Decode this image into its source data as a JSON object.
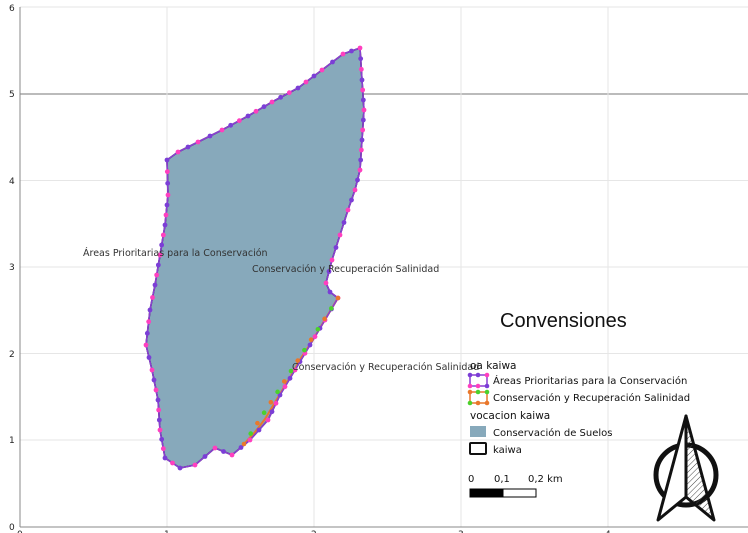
{
  "map": {
    "x_ticks": [
      "0",
      "1",
      "2",
      "3",
      "4"
    ],
    "y_ticks": [
      "0",
      "1",
      "2",
      "3",
      "4",
      "5",
      "6"
    ],
    "polygon_labels": {
      "areas_prioritarias": "Áreas Prioritarias para la Conservación",
      "conservacion_salinidad_1": "Conservación y Recuperación Salinidad",
      "conservacion_salinidad_2": "Conservación y Recuperación Salinidad"
    }
  },
  "legend": {
    "title": "Convensiones",
    "group1_title": "oa kaiwa",
    "item_areas": "Áreas Prioritarias para la Conservación",
    "item_salinidad": "Conservación y Recuperación Salinidad",
    "group2_title": "vocacion kaiwa",
    "item_suelos": "Conservación de Suelos",
    "item_kaiwa": "kaiwa"
  },
  "scale_bar": {
    "label_0": "0",
    "label_1": "0,1",
    "label_2": "0,2 km"
  },
  "colors": {
    "fill": "#87a9bb",
    "outline": "#111111",
    "purple_line": "#8a3fd1",
    "purple_dot": "#7b3ed6",
    "pink_dot": "#ff3fbf",
    "orange_line": "#e9782c",
    "green_dot": "#4bd12c",
    "grid": "#e6e6e6",
    "axis": "#888888"
  },
  "icons": {
    "north_arrow": "north-arrow-icon"
  }
}
